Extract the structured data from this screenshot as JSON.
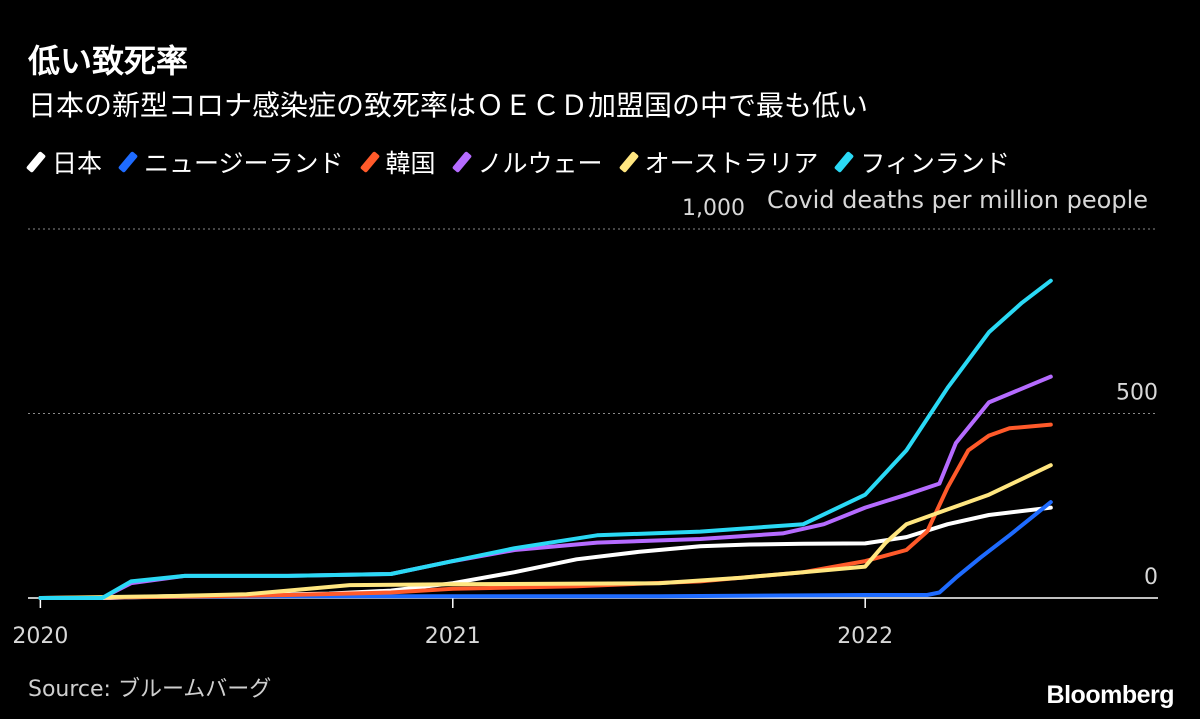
{
  "title": "低い致死率",
  "subtitle": "日本の新型コロナ感染症の致死率はＯＥＣＤ加盟国の中で最も低い",
  "source": "Source: ブルームバーグ",
  "brand": "Bloomberg",
  "chart_data": {
    "type": "line",
    "title": "低い致死率",
    "subtitle": "日本の新型コロナ感染症の致死率はＯＥＣＤ加盟国の中で最も低い",
    "unit_label": "Covid deaths per million people",
    "y_ticks": [
      {
        "value": 1000,
        "label": "1,000"
      },
      {
        "value": 500,
        "label": "500"
      },
      {
        "value": 0,
        "label": "0"
      }
    ],
    "x_ticks": [
      {
        "value": 2020.0,
        "label": "2020"
      },
      {
        "value": 2021.0,
        "label": "2021"
      },
      {
        "value": 2022.0,
        "label": "2022"
      }
    ],
    "xlim": [
      2019.97,
      2022.71
    ],
    "ylim": [
      0,
      1000
    ],
    "grid": true,
    "legend_position": "top",
    "series": [
      {
        "name": "日本",
        "color": "#ffffff",
        "x": [
          2020.0,
          2020.17,
          2020.3,
          2020.5,
          2020.7,
          2020.85,
          2021.0,
          2021.15,
          2021.3,
          2021.45,
          2021.6,
          2021.72,
          2021.85,
          2022.0,
          2022.1,
          2022.2,
          2022.3,
          2022.45
        ],
        "y": [
          0,
          0,
          5,
          8,
          12,
          20,
          40,
          70,
          105,
          125,
          140,
          145,
          147,
          148,
          165,
          200,
          225,
          245
        ]
      },
      {
        "name": "ニュージーランド",
        "color": "#1e6bff",
        "x": [
          2020.0,
          2020.5,
          2021.0,
          2021.5,
          2022.0,
          2022.15,
          2022.18,
          2022.22,
          2022.28,
          2022.35,
          2022.45
        ],
        "y": [
          0,
          5,
          5,
          5,
          8,
          8,
          15,
          55,
          110,
          170,
          260
        ]
      },
      {
        "name": "韓国",
        "color": "#ff5a2a",
        "x": [
          2020.0,
          2020.3,
          2020.6,
          2020.85,
          2021.0,
          2021.3,
          2021.6,
          2021.85,
          2022.0,
          2022.1,
          2022.15,
          2022.2,
          2022.25,
          2022.3,
          2022.35,
          2022.45
        ],
        "y": [
          0,
          3,
          8,
          15,
          25,
          32,
          45,
          70,
          100,
          130,
          180,
          300,
          400,
          440,
          460,
          470
        ]
      },
      {
        "name": "ノルウェー",
        "color": "#b56bff",
        "x": [
          2020.0,
          2020.15,
          2020.22,
          2020.35,
          2020.6,
          2020.85,
          2021.0,
          2021.15,
          2021.35,
          2021.6,
          2021.8,
          2021.9,
          2022.0,
          2022.1,
          2022.18,
          2022.22,
          2022.3,
          2022.45
        ],
        "y": [
          0,
          0,
          40,
          60,
          60,
          65,
          100,
          130,
          150,
          160,
          175,
          200,
          245,
          280,
          310,
          420,
          530,
          600
        ]
      },
      {
        "name": "オーストラリア",
        "color": "#ffe680",
        "x": [
          2020.0,
          2020.3,
          2020.5,
          2020.6,
          2020.75,
          2021.0,
          2021.5,
          2021.7,
          2021.85,
          2022.0,
          2022.05,
          2022.1,
          2022.2,
          2022.3,
          2022.45
        ],
        "y": [
          0,
          5,
          10,
          20,
          35,
          37,
          40,
          55,
          70,
          85,
          150,
          200,
          240,
          280,
          360
        ]
      },
      {
        "name": "フィンランド",
        "color": "#2ad9f5",
        "x": [
          2020.0,
          2020.15,
          2020.22,
          2020.35,
          2020.6,
          2020.85,
          2021.0,
          2021.15,
          2021.35,
          2021.6,
          2021.85,
          2022.0,
          2022.1,
          2022.2,
          2022.3,
          2022.38,
          2022.45
        ],
        "y": [
          0,
          0,
          45,
          60,
          60,
          65,
          100,
          135,
          170,
          180,
          200,
          280,
          400,
          570,
          720,
          800,
          860
        ]
      }
    ]
  }
}
